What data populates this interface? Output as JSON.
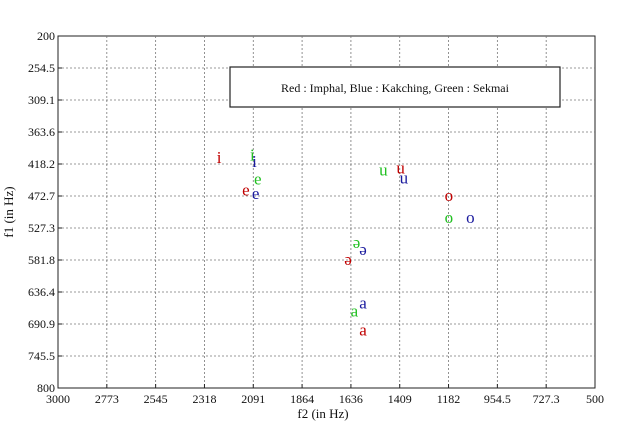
{
  "chart_data": {
    "type": "scatter",
    "title": "",
    "xlabel": "f2 (in Hz)",
    "ylabel": "f1 (in Hz)",
    "x_axis_reversed": true,
    "y_axis_reversed": true,
    "xlim": [
      3000,
      500
    ],
    "ylim": [
      200,
      800
    ],
    "x_ticks": [
      "3000",
      "2773",
      "2545",
      "2318",
      "2091",
      "1864",
      "1636",
      "1409",
      "1182",
      "954.5",
      "727.3",
      "500"
    ],
    "y_ticks": [
      "200",
      "254.5",
      "309.1",
      "363.6",
      "418.2",
      "472.7",
      "527.3",
      "581.8",
      "636.4",
      "690.9",
      "745.5",
      "800"
    ],
    "grid": true,
    "legend_text": "Red : Imphal, Blue : Kakching, Green : Sekmai",
    "legend_placement": "top-right",
    "series": [
      {
        "name": "Imphal",
        "color": "#c00000",
        "points": [
          {
            "label": "i",
            "x": 2250,
            "y": 408
          },
          {
            "label": "e",
            "x": 2125,
            "y": 463
          },
          {
            "label": "u",
            "x": 1405,
            "y": 426
          },
          {
            "label": "o",
            "x": 1180,
            "y": 473
          },
          {
            "label": "ə",
            "x": 1650,
            "y": 582
          },
          {
            "label": "a",
            "x": 1580,
            "y": 702
          }
        ]
      },
      {
        "name": "Kakching",
        "color": "#1a1a9e",
        "points": [
          {
            "label": "i",
            "x": 2085,
            "y": 415
          },
          {
            "label": "e",
            "x": 2080,
            "y": 469
          },
          {
            "label": "u",
            "x": 1390,
            "y": 443
          },
          {
            "label": "o",
            "x": 1080,
            "y": 510
          },
          {
            "label": "ə",
            "x": 1580,
            "y": 565
          },
          {
            "label": "a",
            "x": 1580,
            "y": 656
          }
        ]
      },
      {
        "name": "Sekmai",
        "color": "#22c022",
        "points": [
          {
            "label": "i",
            "x": 2095,
            "y": 404
          },
          {
            "label": "e",
            "x": 2070,
            "y": 445
          },
          {
            "label": "u",
            "x": 1485,
            "y": 429
          },
          {
            "label": "o",
            "x": 1180,
            "y": 510
          },
          {
            "label": "ə",
            "x": 1610,
            "y": 553
          },
          {
            "label": "a",
            "x": 1620,
            "y": 670
          }
        ]
      }
    ]
  }
}
